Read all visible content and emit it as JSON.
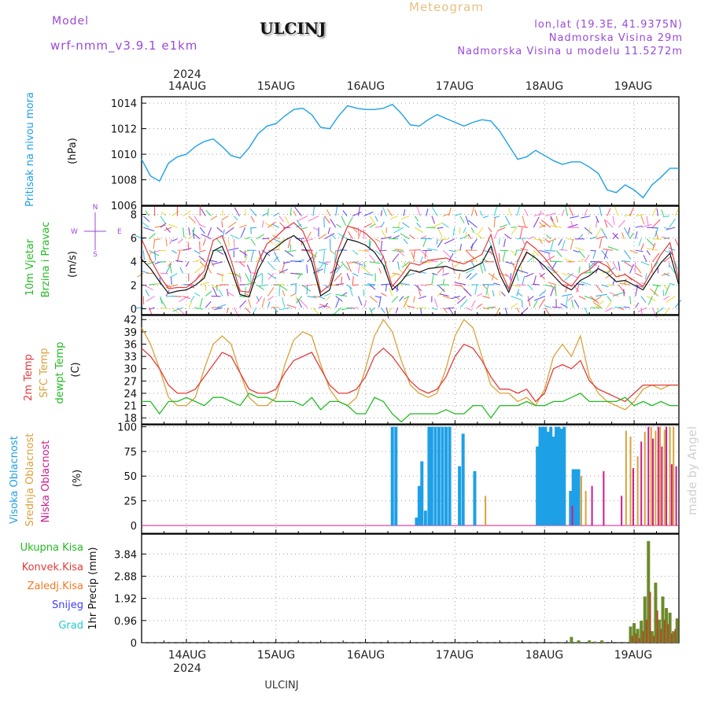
{
  "header": {
    "model_label": "Model",
    "model_name": "wrf-nmm_v3.9.1 e1km",
    "title": "ULCINJ",
    "meteogram": "Meteogram",
    "lonlat": "lon,lat (19.3E, 41.9375N)",
    "altitude": "Nadmorska Visina 29m",
    "model_altitude": "Nadmorska Visina u modelu 11.5272m",
    "footer_title": "ULCINJ",
    "credit": "made by Angel"
  },
  "colors": {
    "pressure": "#1ea0e6",
    "wind_label": "#22bb22",
    "temp2m": "#e23c3c",
    "sfc": "#d9a23a",
    "dewpt": "#22bb22",
    "cloud_high": "#1ea0e6",
    "cloud_mid": "#d9a23a",
    "cloud_low": "#cc1c8c",
    "precip_total": "#22bb22",
    "precip_conv": "#e23c3c",
    "precip_frozen": "#f07a22",
    "snow": "#3c3cff",
    "hail": "#22cccc",
    "model_label": "#9a4ad6"
  },
  "time_axis": {
    "year_top": "2024",
    "year_bottom": "2024",
    "day_labels": [
      "14AUG",
      "15AUG",
      "16AUG",
      "17AUG",
      "18AUG",
      "19AUG"
    ]
  },
  "chart_data": [
    {
      "type": "line",
      "id": "pressure",
      "ylabel_lines": [
        "Pritisak na nivou mora"
      ],
      "unit": "(hPa)",
      "ylim": [
        1006,
        1014.5
      ],
      "yticks": [
        1006,
        1008,
        1010,
        1012,
        1014
      ],
      "xlim": [
        -0.5,
        5.5
      ],
      "grid": true,
      "series": [
        {
          "x": [
            -0.5,
            -0.4,
            -0.3,
            -0.2,
            -0.1,
            0.0,
            0.1,
            0.2,
            0.3,
            0.4,
            0.5,
            0.6,
            0.7,
            0.8,
            0.9,
            1.0,
            1.1,
            1.2,
            1.3,
            1.4,
            1.5,
            1.6,
            1.7,
            1.8,
            1.9,
            2.0,
            2.1,
            2.2,
            2.3,
            2.4,
            2.5,
            2.6,
            2.7,
            2.8,
            2.9,
            3.0,
            3.1,
            3.2,
            3.3,
            3.4,
            3.5,
            3.6,
            3.7,
            3.8,
            3.9,
            4.0,
            4.1,
            4.2,
            4.3,
            4.4,
            4.5,
            4.6,
            4.7,
            4.8,
            4.9,
            5.0,
            5.1,
            5.2,
            5.3,
            5.4,
            5.5
          ],
          "y": [
            1009.6,
            1008.3,
            1007.9,
            1009.3,
            1009.8,
            1010.0,
            1010.6,
            1011.0,
            1011.2,
            1010.6,
            1009.9,
            1009.7,
            1010.5,
            1011.6,
            1012.2,
            1012.4,
            1013.0,
            1013.5,
            1013.6,
            1013.1,
            1012.1,
            1012.0,
            1013.0,
            1013.8,
            1013.6,
            1013.5,
            1013.5,
            1013.6,
            1013.9,
            1013.2,
            1012.3,
            1012.2,
            1012.7,
            1013.1,
            1012.8,
            1012.5,
            1012.2,
            1012.5,
            1012.7,
            1012.6,
            1011.8,
            1010.7,
            1009.6,
            1009.8,
            1010.3,
            1009.9,
            1009.5,
            1009.2,
            1009.4,
            1009.4,
            1009.0,
            1008.5,
            1007.2,
            1007.0,
            1007.6,
            1007.2,
            1006.6,
            1007.6,
            1008.2,
            1008.9,
            1008.9
          ]
        }
      ]
    },
    {
      "type": "line",
      "id": "wind",
      "ylabel_lines": [
        "10m Vjetar",
        "Brzina i Pravac"
      ],
      "unit": "(m/s)",
      "compass": {
        "n": "N",
        "s": "S",
        "w": "W",
        "e": "E"
      },
      "ylim": [
        -0.5,
        8.7
      ],
      "yticks": [
        0,
        2,
        4,
        6,
        8
      ],
      "xlim": [
        -0.5,
        5.5
      ],
      "grid": true,
      "series": [
        {
          "key": "mean",
          "x": [
            -0.5,
            -0.4,
            -0.3,
            -0.2,
            -0.1,
            0.0,
            0.1,
            0.2,
            0.3,
            0.4,
            0.5,
            0.6,
            0.7,
            0.8,
            0.9,
            1.0,
            1.1,
            1.2,
            1.3,
            1.4,
            1.5,
            1.6,
            1.7,
            1.8,
            1.9,
            2.0,
            2.1,
            2.2,
            2.3,
            2.4,
            2.5,
            2.6,
            2.7,
            2.8,
            2.9,
            3.0,
            3.1,
            3.2,
            3.3,
            3.4,
            3.5,
            3.6,
            3.7,
            3.8,
            3.9,
            4.0,
            4.1,
            4.2,
            4.3,
            4.4,
            4.5,
            4.6,
            4.7,
            4.8,
            4.9,
            5.0,
            5.1,
            5.2,
            5.3,
            5.4,
            5.5
          ],
          "y": [
            4.2,
            3.4,
            2.3,
            1.3,
            1.5,
            1.6,
            2.0,
            2.6,
            4.9,
            5.3,
            3.4,
            1.2,
            1.0,
            3.3,
            4.7,
            5.2,
            5.8,
            6.2,
            5.6,
            4.0,
            1.1,
            1.6,
            4.3,
            5.9,
            5.7,
            5.4,
            4.8,
            3.7,
            1.6,
            2.3,
            3.3,
            3.1,
            3.4,
            3.5,
            3.6,
            3.3,
            3.2,
            3.5,
            3.9,
            5.3,
            2.9,
            1.4,
            3.3,
            4.8,
            4.3,
            3.6,
            2.8,
            2.0,
            1.6,
            2.4,
            2.8,
            3.4,
            3.0,
            2.3,
            2.4,
            2.0,
            1.6,
            2.8,
            3.9,
            4.7,
            2.0
          ]
        },
        {
          "key": "gust",
          "x": [
            -0.5,
            -0.4,
            -0.3,
            -0.2,
            -0.1,
            0.0,
            0.1,
            0.2,
            0.3,
            0.4,
            0.5,
            0.6,
            0.7,
            0.8,
            0.9,
            1.0,
            1.1,
            1.2,
            1.3,
            1.4,
            1.5,
            1.6,
            1.7,
            1.8,
            1.9,
            2.0,
            2.1,
            2.2,
            2.3,
            2.4,
            2.5,
            2.6,
            2.7,
            2.8,
            2.9,
            3.0,
            3.1,
            3.2,
            3.3,
            3.4,
            3.5,
            3.6,
            3.7,
            3.8,
            3.9,
            4.0,
            4.1,
            4.2,
            4.3,
            4.4,
            4.5,
            4.6,
            4.7,
            4.8,
            4.9,
            5.0,
            5.1,
            5.2,
            5.3,
            5.4,
            5.5
          ],
          "y": [
            5.9,
            4.2,
            2.8,
            1.7,
            1.8,
            1.8,
            2.4,
            3.2,
            5.8,
            6.2,
            4.1,
            1.5,
            1.4,
            3.9,
            5.5,
            6.1,
            6.8,
            7.3,
            6.6,
            4.8,
            1.4,
            2.0,
            5.1,
            7.0,
            6.8,
            6.4,
            5.7,
            4.4,
            1.9,
            2.8,
            3.9,
            3.7,
            4.1,
            4.2,
            4.3,
            4.0,
            3.8,
            4.2,
            4.6,
            6.3,
            3.4,
            1.7,
            4.0,
            5.7,
            5.1,
            4.3,
            3.3,
            2.4,
            1.9,
            2.9,
            3.3,
            4.0,
            3.6,
            2.7,
            2.9,
            2.4,
            1.9,
            3.3,
            4.6,
            5.6,
            2.4
          ]
        }
      ]
    },
    {
      "type": "line",
      "id": "temperature",
      "ylabel_lines": [
        "2m Temp",
        "SFC Temp",
        "dewpt Temp"
      ],
      "unit": "(C)",
      "ylim": [
        16.5,
        43
      ],
      "yticks": [
        18,
        21,
        24,
        27,
        30,
        33,
        36,
        39,
        42
      ],
      "xlim": [
        -0.5,
        5.5
      ],
      "grid": true,
      "series": [
        {
          "key": "t2m",
          "x": [
            -0.5,
            -0.4,
            -0.3,
            -0.2,
            -0.1,
            0.0,
            0.1,
            0.2,
            0.3,
            0.4,
            0.5,
            0.6,
            0.7,
            0.8,
            0.9,
            1.0,
            1.1,
            1.2,
            1.3,
            1.4,
            1.5,
            1.6,
            1.7,
            1.8,
            1.9,
            2.0,
            2.1,
            2.2,
            2.3,
            2.4,
            2.5,
            2.6,
            2.7,
            2.8,
            2.9,
            3.0,
            3.1,
            3.2,
            3.3,
            3.4,
            3.5,
            3.6,
            3.7,
            3.8,
            3.9,
            4.0,
            4.1,
            4.2,
            4.3,
            4.4,
            4.5,
            4.6,
            4.7,
            4.8,
            4.9,
            5.0,
            5.1,
            5.2,
            5.3,
            5.4,
            5.5
          ],
          "y": [
            35,
            33,
            30,
            26,
            24,
            24,
            25,
            28,
            31,
            34,
            33,
            29,
            25,
            24,
            24,
            25,
            29,
            32,
            33,
            34,
            30,
            26,
            24,
            24,
            25,
            28,
            33,
            35,
            33,
            30,
            27,
            25,
            24,
            25,
            28,
            33,
            36,
            35,
            32,
            28,
            25,
            25,
            24,
            25,
            22,
            24,
            30,
            31,
            30,
            32,
            27,
            25,
            24,
            23,
            22,
            24,
            26,
            26,
            26,
            26,
            26
          ]
        },
        {
          "key": "sfc",
          "x": [
            -0.5,
            -0.4,
            -0.3,
            -0.2,
            -0.1,
            0.0,
            0.1,
            0.2,
            0.3,
            0.4,
            0.5,
            0.6,
            0.7,
            0.8,
            0.9,
            1.0,
            1.1,
            1.2,
            1.3,
            1.4,
            1.5,
            1.6,
            1.7,
            1.8,
            1.9,
            2.0,
            2.1,
            2.2,
            2.3,
            2.4,
            2.5,
            2.6,
            2.7,
            2.8,
            2.9,
            3.0,
            3.1,
            3.2,
            3.3,
            3.4,
            3.5,
            3.6,
            3.7,
            3.8,
            3.9,
            4.0,
            4.1,
            4.2,
            4.3,
            4.4,
            4.5,
            4.6,
            4.7,
            4.8,
            4.9,
            5.0,
            5.1,
            5.2,
            5.3,
            5.4,
            5.5
          ],
          "y": [
            40,
            36,
            30,
            23,
            21,
            21,
            23,
            30,
            36,
            38,
            36,
            29,
            23,
            21,
            21,
            23,
            31,
            37,
            39,
            38,
            31,
            25,
            22,
            21,
            23,
            30,
            38,
            42,
            39,
            32,
            26,
            24,
            23,
            24,
            30,
            38,
            42,
            40,
            33,
            26,
            24,
            24,
            22,
            23,
            21,
            25,
            33,
            36,
            33,
            38,
            28,
            24,
            22,
            21,
            20,
            22,
            25,
            26,
            25,
            26,
            26
          ]
        },
        {
          "key": "dewpt",
          "x": [
            -0.5,
            -0.4,
            -0.3,
            -0.2,
            -0.1,
            0.0,
            0.1,
            0.2,
            0.3,
            0.4,
            0.5,
            0.6,
            0.7,
            0.8,
            0.9,
            1.0,
            1.1,
            1.2,
            1.3,
            1.4,
            1.5,
            1.6,
            1.7,
            1.8,
            1.9,
            2.0,
            2.1,
            2.2,
            2.3,
            2.4,
            2.5,
            2.6,
            2.7,
            2.8,
            2.9,
            3.0,
            3.1,
            3.2,
            3.3,
            3.4,
            3.5,
            3.6,
            3.7,
            3.8,
            3.9,
            4.0,
            4.1,
            4.2,
            4.3,
            4.4,
            4.5,
            4.6,
            4.7,
            4.8,
            4.9,
            5.0,
            5.1,
            5.2,
            5.3,
            5.4,
            5.5
          ],
          "y": [
            22,
            22,
            19,
            22,
            22,
            23,
            22,
            21,
            23,
            23,
            22,
            21,
            24,
            23,
            23,
            22,
            22,
            22,
            21,
            23,
            20,
            22,
            22,
            21,
            19,
            19,
            23,
            22,
            19,
            17,
            19,
            19,
            19,
            19,
            20,
            19,
            19,
            21,
            21,
            18,
            21,
            21,
            21,
            22,
            21,
            21,
            22,
            22,
            23,
            24,
            22,
            22,
            22,
            22,
            23,
            21,
            22,
            21,
            22,
            21,
            21
          ]
        }
      ]
    },
    {
      "type": "bar",
      "id": "clouds",
      "ylabel_lines": [
        "Visoka Oblacnost",
        "Srednja Oblacnost",
        "Niska Oblacnost"
      ],
      "unit": "(%)",
      "ylim": [
        -8,
        102
      ],
      "yticks": [
        0,
        25,
        50,
        75,
        100
      ],
      "xlim": [
        -0.5,
        5.5
      ],
      "grid": true,
      "series": [
        {
          "key": "high",
          "x": [
            2.3,
            2.34,
            2.57,
            2.6,
            2.63,
            2.67,
            2.71,
            2.74,
            2.78,
            2.82,
            2.86,
            2.9,
            2.94,
            3.05,
            3.09,
            3.22,
            3.92,
            3.95,
            3.98,
            4.01,
            4.04,
            4.07,
            4.1,
            4.13,
            4.16,
            4.19,
            4.22,
            4.29,
            4.32,
            4.35,
            4.38
          ],
          "y": [
            100,
            100,
            8,
            40,
            65,
            15,
            100,
            100,
            100,
            100,
            100,
            100,
            100,
            60,
            93,
            55,
            80,
            100,
            100,
            100,
            95,
            100,
            90,
            100,
            100,
            98,
            100,
            35,
            57,
            57,
            57
          ]
        },
        {
          "key": "mid",
          "x": [
            3.34,
            4.41,
            4.46,
            4.91,
            4.96,
            5.04,
            5.12,
            5.19,
            5.24,
            5.29,
            5.34,
            5.4,
            5.44
          ],
          "y": [
            30,
            50,
            35,
            96,
            90,
            70,
            95,
            100,
            96,
            100,
            97,
            100,
            100
          ]
        },
        {
          "key": "low",
          "x": [
            4.31,
            4.53,
            4.66,
            4.86,
            4.99,
            5.08,
            5.16,
            5.21,
            5.27,
            5.31,
            5.36,
            5.42,
            5.47
          ],
          "y": [
            20,
            40,
            55,
            30,
            58,
            85,
            100,
            88,
            100,
            80,
            100,
            62,
            60
          ]
        }
      ]
    },
    {
      "type": "bar",
      "id": "precip",
      "ylabel_lines": [
        "Ukupna Kisa",
        "Konvek.Kisa",
        "Zaledj.Kisa",
        "Snijeg",
        "Grad"
      ],
      "unit": "1hr Precip (mm)",
      "ylim": [
        0,
        4.7
      ],
      "yticks": [
        0,
        0.96,
        1.92,
        2.88,
        3.84
      ],
      "xlim": [
        -0.5,
        5.5
      ],
      "grid": true,
      "series": [
        {
          "key": "total",
          "x": [
            4.3,
            4.38,
            4.5,
            4.56,
            4.64,
            4.96,
            5.0,
            5.04,
            5.08,
            5.12,
            5.16,
            5.2,
            5.24,
            5.28,
            5.32,
            5.36,
            5.4,
            5.44,
            5.48
          ],
          "y": [
            0.25,
            0.1,
            0.1,
            0.05,
            0.1,
            0.7,
            0.85,
            0.6,
            0.95,
            2.0,
            4.4,
            0.5,
            2.6,
            1.0,
            2.0,
            1.5,
            1.3,
            0.5,
            1.05
          ]
        },
        {
          "key": "conv",
          "x": [
            4.98,
            5.02,
            5.06,
            5.1,
            5.14,
            5.18,
            5.22,
            5.26,
            5.3,
            5.34,
            5.38,
            5.42,
            5.46
          ],
          "y": [
            0.3,
            0.4,
            0.2,
            0.5,
            1.0,
            2.2,
            0.3,
            1.4,
            0.6,
            1.0,
            0.8,
            0.4,
            0.6
          ]
        }
      ]
    }
  ]
}
